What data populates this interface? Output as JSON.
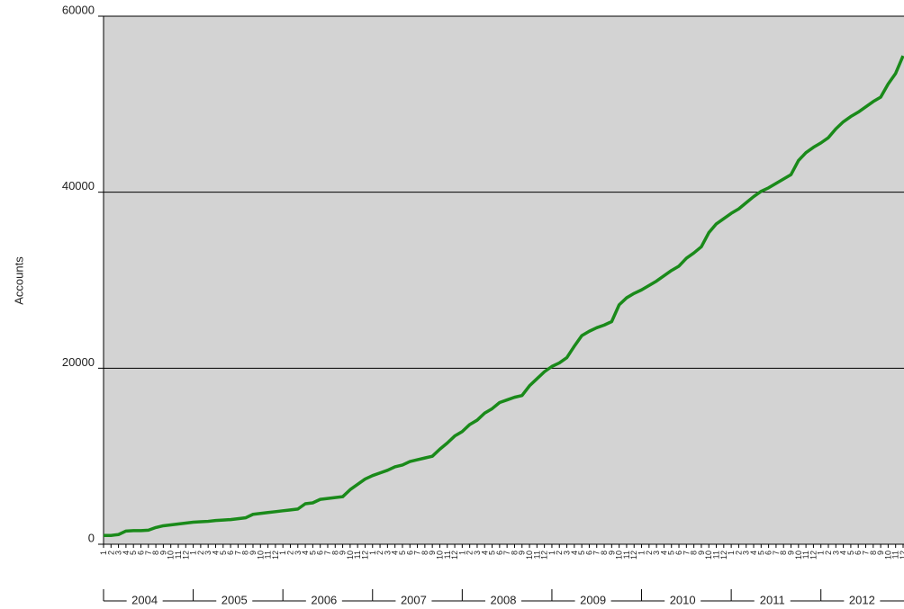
{
  "chart_data": {
    "type": "line",
    "y_label": "Accounts",
    "categories": [
      "1",
      "2",
      "3",
      "4",
      "5",
      "6",
      "7",
      "8",
      "9",
      "10",
      "11",
      "12",
      "1",
      "2",
      "3",
      "4",
      "5",
      "6",
      "7",
      "8",
      "9",
      "10",
      "11",
      "12",
      "1",
      "2",
      "3",
      "4",
      "5",
      "6",
      "7",
      "8",
      "9",
      "10",
      "11",
      "12",
      "1",
      "2",
      "3",
      "4",
      "5",
      "6",
      "7",
      "8",
      "9",
      "10",
      "11",
      "12",
      "1",
      "2",
      "3",
      "4",
      "5",
      "6",
      "7",
      "8",
      "9",
      "10",
      "11",
      "12",
      "1",
      "2",
      "3",
      "4",
      "5",
      "6",
      "7",
      "8",
      "9",
      "10",
      "11",
      "12",
      "1",
      "2",
      "3",
      "4",
      "5",
      "6",
      "7",
      "8",
      "9",
      "10",
      "11",
      "12",
      "1",
      "2",
      "3",
      "4",
      "5",
      "6",
      "7",
      "8",
      "9",
      "10",
      "11",
      "12",
      "1",
      "2",
      "3",
      "4",
      "5",
      "6",
      "7",
      "8",
      "9",
      "10",
      "11",
      "12"
    ],
    "year_groups": [
      "2004",
      "2005",
      "2006",
      "2007",
      "2008",
      "2009",
      "2010",
      "2011",
      "2012"
    ],
    "series": [
      {
        "name": "Accounts",
        "color": "#1a8a1a",
        "values": [
          1000,
          1000,
          1100,
          1500,
          1550,
          1550,
          1600,
          1900,
          2100,
          2200,
          2300,
          2400,
          2500,
          2550,
          2600,
          2700,
          2750,
          2800,
          2900,
          3000,
          3400,
          3500,
          3600,
          3700,
          3800,
          3900,
          4000,
          4600,
          4700,
          5100,
          5200,
          5300,
          5400,
          6200,
          6800,
          7400,
          7800,
          8100,
          8400,
          8800,
          9000,
          9400,
          9600,
          9800,
          10000,
          10800,
          11500,
          12300,
          12800,
          13600,
          14100,
          14900,
          15400,
          16100,
          16400,
          16700,
          16900,
          18000,
          18800,
          19600,
          20200,
          20600,
          21200,
          22500,
          23700,
          24200,
          24600,
          24900,
          25300,
          27200,
          28000,
          28500,
          28900,
          29400,
          29900,
          30500,
          31100,
          31600,
          32500,
          33100,
          33800,
          35400,
          36400,
          37000,
          37600,
          38100,
          38800,
          39500,
          40100,
          40500,
          41000,
          41500,
          42000,
          43600,
          44500,
          45100,
          45600,
          46200,
          47200,
          48000,
          48600,
          49100,
          49700,
          50300,
          50800,
          52300,
          53500,
          55500
        ]
      }
    ],
    "ylim": [
      0,
      60000
    ],
    "yticks": [
      0,
      20000,
      40000,
      60000
    ],
    "grid": true,
    "plot_color": "#d3d3d3"
  }
}
